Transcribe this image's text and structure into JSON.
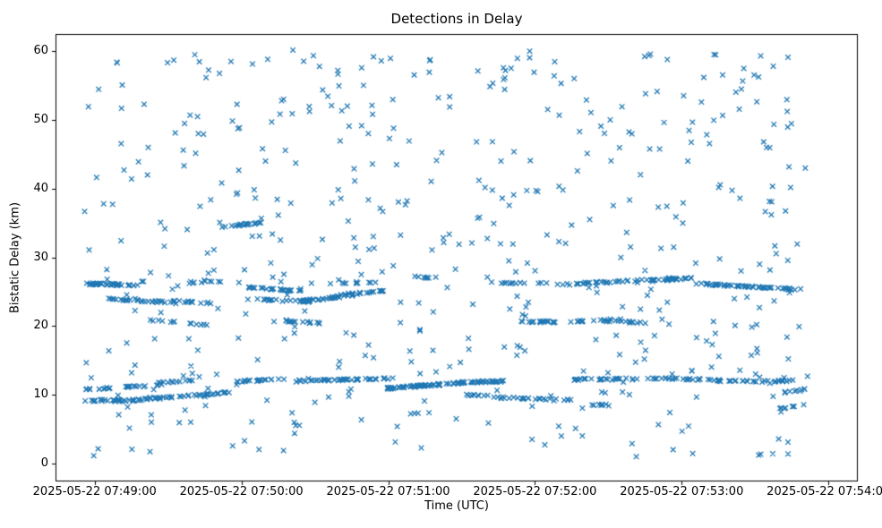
{
  "chart_data": {
    "type": "scatter",
    "title": "Detections in Delay",
    "xlabel": "Time (UTC)",
    "ylabel": "Bistatic Delay (km)",
    "marker": "x",
    "marker_color": "#1f77b4",
    "grid": false,
    "legend": "none",
    "x_tick_seconds": [
      0,
      60,
      120,
      180,
      240,
      300
    ],
    "x_tick_labels": [
      "2025-05-22 07:49:00",
      "2025-05-22 07:50:00",
      "2025-05-22 07:51:00",
      "2025-05-22 07:52:00",
      "2025-05-22 07:53:00",
      "2025-05-22 07:54:00"
    ],
    "y_ticks": [
      0,
      10,
      20,
      30,
      40,
      50,
      60
    ],
    "xlim_seconds": [
      -16,
      312
    ],
    "ylim": [
      -2.6,
      62.5
    ],
    "track_jitter": 0.25,
    "tracks": [
      [
        -4,
        18,
        26.2,
        25.9,
        40
      ],
      [
        4,
        34,
        24.1,
        23.3,
        26
      ],
      [
        26,
        48,
        23.7,
        23.4,
        18
      ],
      [
        22,
        46,
        20.9,
        20.2,
        12
      ],
      [
        -4,
        10,
        9.1,
        9.3,
        18
      ],
      [
        -4,
        28,
        10.8,
        11.4,
        26
      ],
      [
        8,
        58,
        9.0,
        10.4,
        60
      ],
      [
        26,
        42,
        11.8,
        12.1,
        14
      ],
      [
        36,
        52,
        26.3,
        26.5,
        10
      ],
      [
        52,
        68,
        34.5,
        35.0,
        22
      ],
      [
        58,
        76,
        11.9,
        12.3,
        22
      ],
      [
        62,
        86,
        25.6,
        25.1,
        26
      ],
      [
        66,
        90,
        23.9,
        23.5,
        20
      ],
      [
        84,
        108,
        23.6,
        24.6,
        40
      ],
      [
        100,
        118,
        24.6,
        25.1,
        18
      ],
      [
        96,
        116,
        26.2,
        26.4,
        10
      ],
      [
        82,
        122,
        12.0,
        12.4,
        50
      ],
      [
        118,
        152,
        10.9,
        11.8,
        70
      ],
      [
        150,
        168,
        11.8,
        12.0,
        30
      ],
      [
        78,
        96,
        20.8,
        20.3,
        14
      ],
      [
        128,
        146,
        27.2,
        26.9,
        8
      ],
      [
        152,
        166,
        10.0,
        9.7,
        10
      ],
      [
        166,
        196,
        9.6,
        9.2,
        24
      ],
      [
        174,
        200,
        20.6,
        20.7,
        26
      ],
      [
        204,
        226,
        20.9,
        20.4,
        20
      ],
      [
        162,
        196,
        26.3,
        26.1,
        18
      ],
      [
        196,
        240,
        26.2,
        26.9,
        44
      ],
      [
        228,
        244,
        26.6,
        27.0,
        24
      ],
      [
        196,
        238,
        12.2,
        12.4,
        40
      ],
      [
        240,
        272,
        12.3,
        12.0,
        30
      ],
      [
        244,
        290,
        26.2,
        25.3,
        60
      ],
      [
        272,
        286,
        11.9,
        12.1,
        14
      ],
      [
        282,
        292,
        10.4,
        10.8,
        10
      ],
      [
        280,
        290,
        8.0,
        8.6,
        8
      ],
      [
        200,
        212,
        8.6,
        8.5,
        8
      ]
    ],
    "background": {
      "n": 520,
      "t_range": [
        -5,
        292
      ],
      "y_range": [
        0.8,
        60.2
      ],
      "seed": 20250522
    }
  }
}
